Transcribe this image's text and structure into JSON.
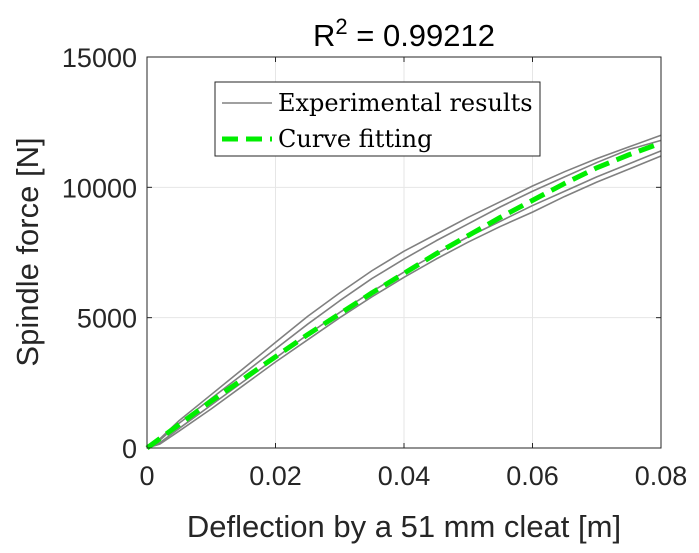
{
  "chart_data": {
    "type": "line",
    "title": "R² = 0.99212",
    "title_parts": {
      "base": "R",
      "sup": "2",
      "rest": " = 0.99212"
    },
    "xlabel": "Deflection by a 51 mm cleat [m]",
    "ylabel": "Spindle force [N]",
    "xlim": [
      0,
      0.08
    ],
    "ylim": [
      0,
      15000
    ],
    "xticks": [
      0,
      0.02,
      0.04,
      0.06,
      0.08
    ],
    "xtick_labels": [
      "0",
      "0.02",
      "0.04",
      "0.06",
      "0.08"
    ],
    "yticks": [
      0,
      5000,
      10000,
      15000
    ],
    "ytick_labels": [
      "0",
      "5000",
      "10000",
      "15000"
    ],
    "grid": true,
    "legend_position": "top-left",
    "series": [
      {
        "name": "Experimental results",
        "color": "#808080",
        "style": "solid",
        "curves": [
          {
            "x": [
              0,
              0.002,
              0.005,
              0.01,
              0.015,
              0.02,
              0.025,
              0.03,
              0.035,
              0.04,
              0.045,
              0.05,
              0.055,
              0.06,
              0.065,
              0.07,
              0.075,
              0.08
            ],
            "y": [
              0,
              350,
              1050,
              2050,
              3050,
              4050,
              5050,
              5950,
              6800,
              7550,
              8200,
              8850,
              9450,
              10050,
              10600,
              11100,
              11550,
              12000
            ]
          },
          {
            "x": [
              0,
              0.002,
              0.005,
              0.01,
              0.015,
              0.02,
              0.025,
              0.03,
              0.035,
              0.04,
              0.045,
              0.05,
              0.055,
              0.06,
              0.065,
              0.07,
              0.075,
              0.08
            ],
            "y": [
              0,
              300,
              950,
              1900,
              2850,
              3800,
              4750,
              5650,
              6500,
              7250,
              7950,
              8600,
              9250,
              9850,
              10400,
              10950,
              11450,
              11800
            ]
          },
          {
            "x": [
              0,
              0.002,
              0.005,
              0.01,
              0.015,
              0.02,
              0.025,
              0.03,
              0.035,
              0.04,
              0.045,
              0.05,
              0.055,
              0.06,
              0.065,
              0.07,
              0.075,
              0.08
            ],
            "y": [
              0,
              200,
              750,
              1650,
              2550,
              3450,
              4350,
              5200,
              6000,
              6750,
              7450,
              8100,
              8700,
              9300,
              9850,
              10400,
              10900,
              11400
            ]
          },
          {
            "x": [
              0,
              0.002,
              0.005,
              0.01,
              0.015,
              0.02,
              0.025,
              0.03,
              0.035,
              0.04,
              0.045,
              0.05,
              0.055,
              0.06,
              0.065,
              0.07,
              0.075,
              0.08
            ],
            "y": [
              0,
              150,
              650,
              1500,
              2400,
              3300,
              4150,
              5000,
              5800,
              6550,
              7250,
              7900,
              8500,
              9050,
              9650,
              10200,
              10700,
              11200
            ]
          }
        ]
      },
      {
        "name": "Curve fitting",
        "color": "#00ee00",
        "style": "dashed",
        "x": [
          0,
          0.005,
          0.01,
          0.015,
          0.02,
          0.025,
          0.03,
          0.035,
          0.04,
          0.045,
          0.05,
          0.055,
          0.06,
          0.065,
          0.07,
          0.075,
          0.08
        ],
        "y": [
          0,
          900,
          1800,
          2650,
          3500,
          4350,
          5150,
          5950,
          6700,
          7450,
          8150,
          8850,
          9500,
          10150,
          10750,
          11250,
          11700
        ]
      }
    ]
  }
}
